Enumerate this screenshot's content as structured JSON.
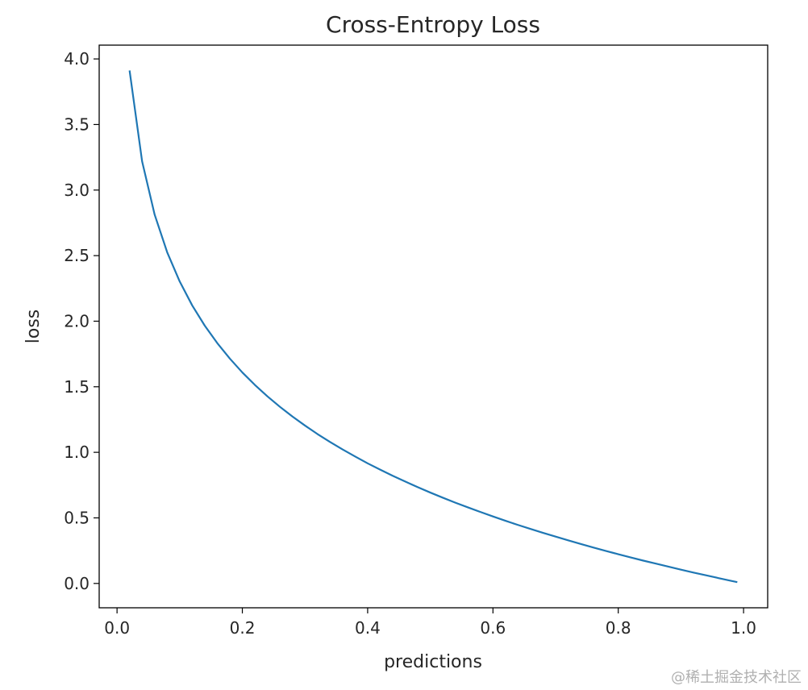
{
  "chart_data": {
    "type": "line",
    "title": "Cross-Entropy Loss",
    "xlabel": "predictions",
    "ylabel": "loss",
    "xlim": [
      -0.0285,
      1.0385
    ],
    "ylim": [
      -0.1856,
      4.1052
    ],
    "xticks": [
      0.0,
      0.2,
      0.4,
      0.6,
      0.8,
      1.0
    ],
    "xtick_labels": [
      "0.0",
      "0.2",
      "0.4",
      "0.6",
      "0.8",
      "1.0"
    ],
    "yticks": [
      0.0,
      0.5,
      1.0,
      1.5,
      2.0,
      2.5,
      3.0,
      3.5,
      4.0
    ],
    "ytick_labels": [
      "0.0",
      "0.5",
      "1.0",
      "1.5",
      "2.0",
      "2.5",
      "3.0",
      "3.5",
      "4.0"
    ],
    "grid": false,
    "series": [
      {
        "name": "loss",
        "color": "#1f77b4",
        "x": [
          0.02,
          0.04,
          0.06,
          0.08,
          0.1,
          0.12,
          0.14,
          0.16,
          0.18,
          0.2,
          0.22,
          0.24,
          0.26,
          0.28,
          0.3,
          0.32,
          0.34,
          0.36,
          0.38,
          0.4,
          0.42,
          0.44,
          0.46,
          0.48,
          0.5,
          0.52,
          0.54,
          0.56,
          0.58,
          0.6,
          0.62,
          0.64,
          0.66,
          0.68,
          0.7,
          0.72,
          0.74,
          0.76,
          0.78,
          0.8,
          0.82,
          0.84,
          0.86,
          0.88,
          0.9,
          0.92,
          0.94,
          0.96,
          0.98,
          0.99
        ],
        "y": [
          3.912,
          3.219,
          2.813,
          2.526,
          2.303,
          2.12,
          1.966,
          1.833,
          1.715,
          1.609,
          1.514,
          1.427,
          1.347,
          1.273,
          1.204,
          1.139,
          1.079,
          1.022,
          0.968,
          0.916,
          0.868,
          0.821,
          0.777,
          0.734,
          0.693,
          0.654,
          0.616,
          0.58,
          0.545,
          0.511,
          0.478,
          0.446,
          0.416,
          0.386,
          0.357,
          0.329,
          0.301,
          0.274,
          0.248,
          0.223,
          0.198,
          0.174,
          0.151,
          0.128,
          0.105,
          0.083,
          0.062,
          0.041,
          0.02,
          0.01
        ]
      }
    ]
  },
  "watermark": "@稀土掘金技术社区"
}
